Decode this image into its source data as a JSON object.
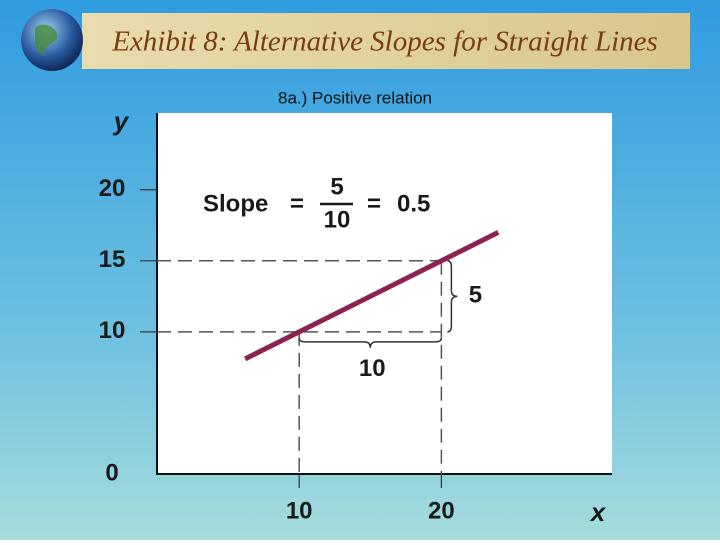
{
  "chart_data": {
    "type": "line",
    "title": "Exhibit 8: Alternative Slopes for Straight Lines",
    "subtitle": "8a.) Positive relation",
    "x_label": "x",
    "y_label": "y",
    "xlim": [
      0,
      32
    ],
    "ylim": [
      0,
      25.4
    ],
    "xticks": [
      10,
      20
    ],
    "yticks": [
      0,
      10,
      15,
      20
    ],
    "series": [
      {
        "color": "#8b2252",
        "x": [
          6.2,
          24
        ],
        "values": [
          8.1,
          17
        ]
      }
    ],
    "guides": {
      "x": [
        10,
        20
      ],
      "y": [
        10,
        15
      ]
    },
    "slope_text": {
      "label": "Slope",
      "equals": "=",
      "numerator": "5",
      "denominator": "10",
      "result": "0.5"
    },
    "rise_label": "5",
    "run_label": "10"
  }
}
